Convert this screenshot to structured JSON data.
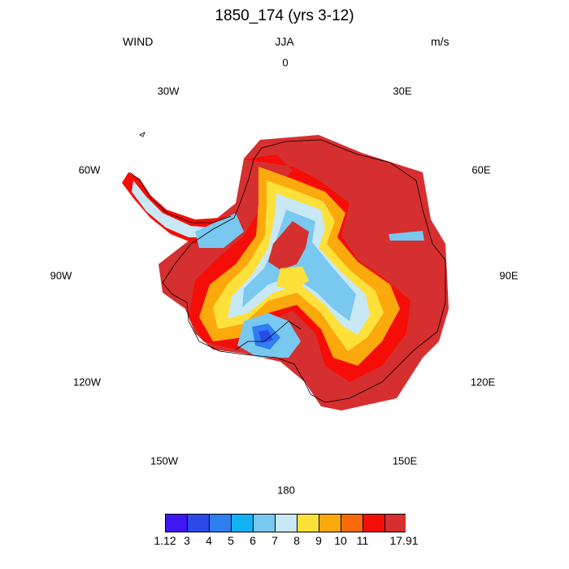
{
  "title": "1850_174 (yrs 3-12)",
  "header": {
    "left": "WIND",
    "center": "JJA",
    "right": "m/s"
  },
  "lon_labels": [
    "0",
    "30E",
    "60E",
    "90E",
    "120E",
    "150E",
    "180",
    "150W",
    "120W",
    "90W",
    "60W",
    "30W"
  ],
  "map": {
    "region": "Antarctica",
    "projection": "south polar stereographic"
  },
  "colorbar": {
    "colors": [
      "#4016f0",
      "#2b4ae8",
      "#2f7ef0",
      "#13b2f5",
      "#78c8f0",
      "#c8e8f6",
      "#fde13a",
      "#fba90d",
      "#fb6a0a",
      "#f50d07",
      "#d62f2f"
    ],
    "labels": [
      "1.12",
      "3",
      "4",
      "5",
      "6",
      "7",
      "8",
      "9",
      "10",
      "11",
      "17.91"
    ]
  }
}
